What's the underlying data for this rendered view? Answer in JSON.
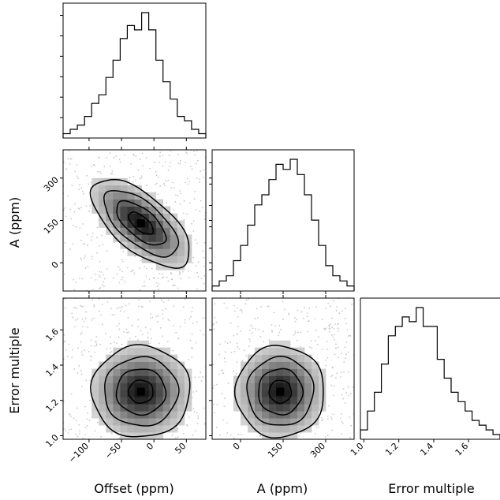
{
  "chart_data": {
    "type": "corner",
    "variables": [
      {
        "name": "Offset (ppm)",
        "range": [
          -140,
          80
        ],
        "ticks": [
          -100,
          -50,
          0,
          50
        ],
        "tick_labels": [
          "−100",
          "−50",
          "0",
          "50"
        ],
        "best": -20,
        "sd": 38
      },
      {
        "name": "A (ppm)",
        "range": [
          -100,
          400
        ],
        "ticks": [
          0,
          150,
          300
        ],
        "tick_labels": [
          "0",
          "150",
          "300"
        ],
        "best": 140,
        "sd": 78
      },
      {
        "name": "Error multiple",
        "range": [
          0.98,
          1.78
        ],
        "ticks": [
          1.0,
          1.2,
          1.4,
          1.6
        ],
        "tick_labels": [
          "1.0",
          "1.2",
          "1.4",
          "1.6"
        ],
        "best": 1.25,
        "sd": 0.13
      }
    ],
    "histograms": [
      {
        "variable": "Offset (ppm)",
        "bins": 20,
        "values": [
          1,
          2,
          3,
          5,
          8,
          10,
          14,
          18,
          23,
          26,
          25,
          29,
          25,
          18,
          13,
          9,
          5,
          4,
          2,
          1
        ]
      },
      {
        "variable": "A (ppm)",
        "bins": 20,
        "values": [
          1,
          2,
          3,
          6,
          9,
          13,
          17,
          19,
          22,
          25,
          24,
          26,
          23,
          19,
          14,
          9,
          5,
          3,
          2,
          1
        ]
      },
      {
        "variable": "Error multiple",
        "bins": 20,
        "values": [
          2,
          6,
          10,
          16,
          22,
          24,
          26,
          25,
          28,
          24,
          24,
          17,
          13,
          10,
          8,
          6,
          4,
          3,
          2,
          1
        ]
      }
    ],
    "pairs": [
      {
        "x": "Offset (ppm)",
        "y": "A (ppm)",
        "correlation": -0.65
      },
      {
        "x": "Offset (ppm)",
        "y": "Error multiple",
        "correlation": 0.0
      },
      {
        "x": "A (ppm)",
        "y": "Error multiple",
        "correlation": 0.0
      }
    ],
    "contour_levels_sigma": [
      0.5,
      1.0,
      1.5,
      2.0
    ]
  }
}
